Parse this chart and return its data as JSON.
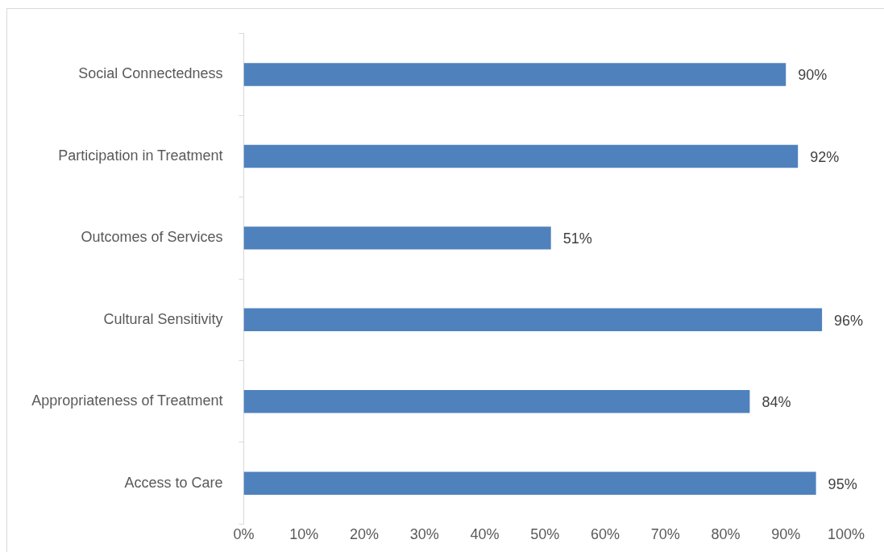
{
  "chart_data": {
    "type": "bar",
    "orientation": "horizontal",
    "categories": [
      "Social Connectedness",
      "Participation in Treatment",
      "Outcomes of Services",
      "Cultural Sensitivity",
      "Appropriateness of Treatment",
      "Access to Care"
    ],
    "values": [
      90,
      92,
      51,
      96,
      84,
      95
    ],
    "value_labels": [
      "90%",
      "92%",
      "51%",
      "96%",
      "84%",
      "95%"
    ],
    "color": "#4f81bd",
    "xlim": [
      0,
      100
    ],
    "xticks": [
      {
        "value": 0,
        "label": "0%"
      },
      {
        "value": 10,
        "label": "10%"
      },
      {
        "value": 20,
        "label": "20%"
      },
      {
        "value": 30,
        "label": "30%"
      },
      {
        "value": 40,
        "label": "40%"
      },
      {
        "value": 50,
        "label": "50%"
      },
      {
        "value": 60,
        "label": "60%"
      },
      {
        "value": 70,
        "label": "70%"
      },
      {
        "value": 80,
        "label": "80%"
      },
      {
        "value": 90,
        "label": "90%"
      },
      {
        "value": 100,
        "label": "100%"
      }
    ],
    "grid": false,
    "legend": false
  }
}
